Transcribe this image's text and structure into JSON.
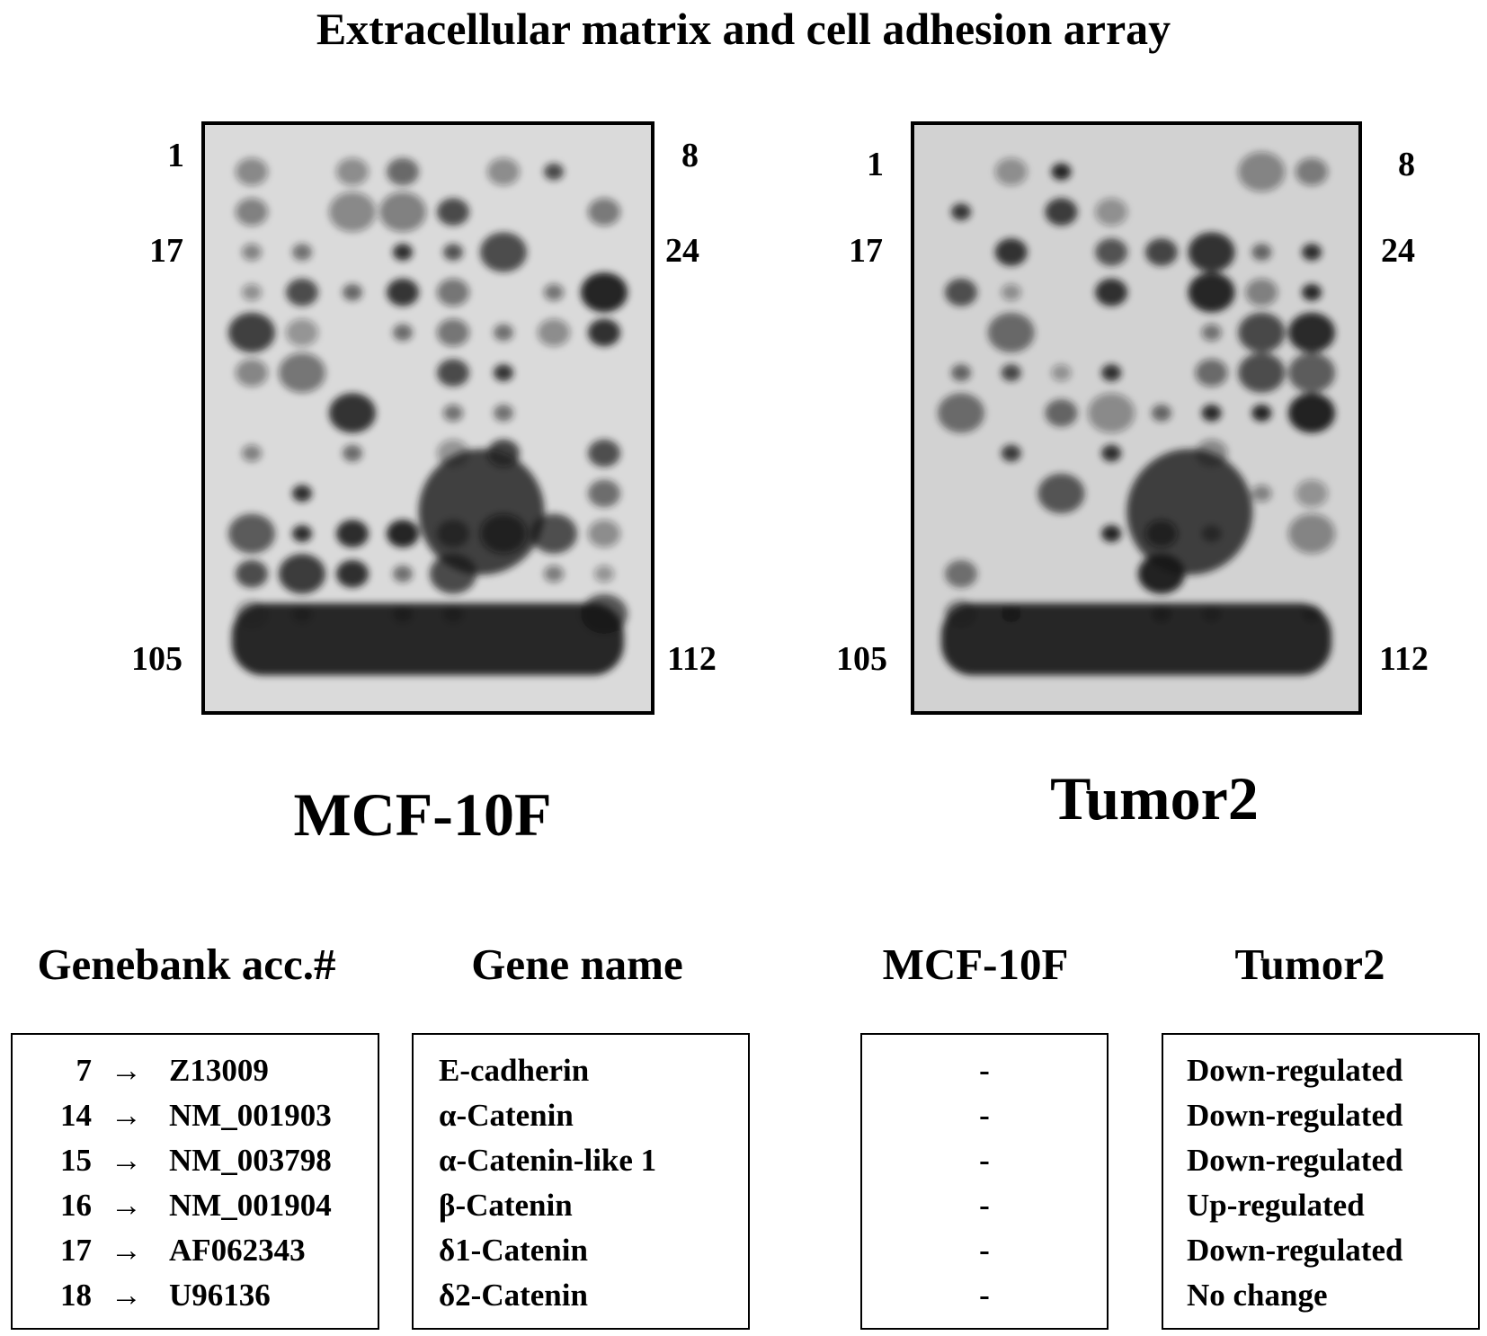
{
  "title": "Extracellular matrix and cell adhesion array",
  "panels": [
    {
      "label": "MCF-10F",
      "corner_labels": {
        "top_left": "1",
        "top_right": "8",
        "mid_left": "17",
        "mid_right": "24",
        "bottom_left": "105",
        "bottom_right": "112"
      }
    },
    {
      "label": "Tumor2",
      "corner_labels": {
        "top_left": "1",
        "top_right": "8",
        "mid_left": "17",
        "mid_right": "24",
        "bottom_left": "105",
        "bottom_right": "112"
      }
    }
  ],
  "table": {
    "headers": {
      "accession": "Genebank acc.#",
      "gene": "Gene name",
      "mcf": "MCF-10F",
      "tumor": "Tumor2"
    },
    "arrow": "→",
    "rows": [
      {
        "spot": "7",
        "accession": "Z13009",
        "gene": "E-cadherin",
        "mcf": "-",
        "tumor": "Down-regulated"
      },
      {
        "spot": "14",
        "accession": "NM_001903",
        "gene": "α-Catenin",
        "mcf": "-",
        "tumor": "Down-regulated"
      },
      {
        "spot": "15",
        "accession": "NM_003798",
        "gene": "α-Catenin-like 1",
        "mcf": "-",
        "tumor": "Down-regulated"
      },
      {
        "spot": "16",
        "accession": "NM_001904",
        "gene": "β-Catenin",
        "mcf": "-",
        "tumor": "Up-regulated"
      },
      {
        "spot": "17",
        "accession": "AF062343",
        "gene": "δ1-Catenin",
        "mcf": "-",
        "tumor": "Down-regulated"
      },
      {
        "spot": "18",
        "accession": "U96136",
        "gene": "δ2-Catenin",
        "mcf": "-",
        "tumor": "No change"
      }
    ]
  }
}
